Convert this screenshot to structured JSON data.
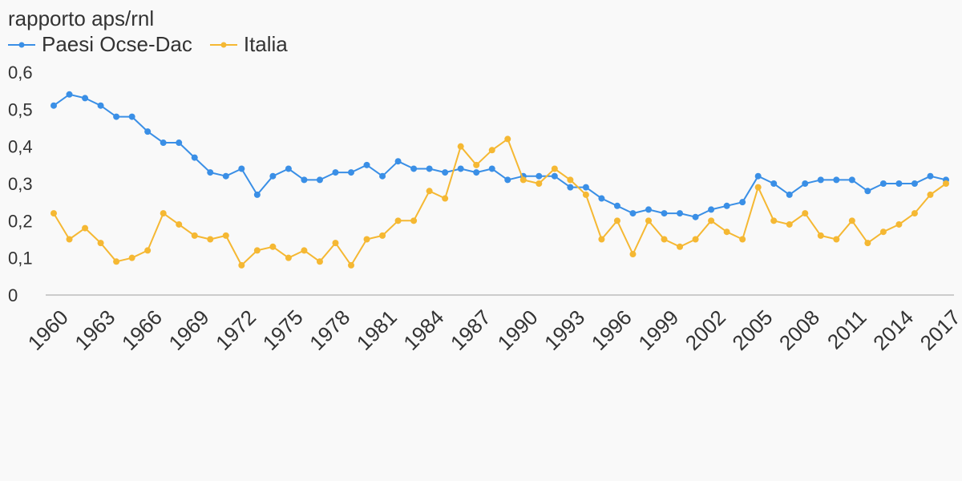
{
  "chart_data": {
    "type": "line",
    "title": "rapporto aps/rnl",
    "xlabel": "",
    "ylabel": "",
    "ylim": [
      0,
      0.6
    ],
    "y_ticks": [
      0,
      0.1,
      0.2,
      0.3,
      0.4,
      0.5,
      0.6
    ],
    "y_tick_labels": [
      "0",
      "0,1",
      "0,2",
      "0,3",
      "0,4",
      "0,5",
      "0,6"
    ],
    "x": [
      1960,
      1961,
      1962,
      1963,
      1964,
      1965,
      1966,
      1967,
      1968,
      1969,
      1970,
      1971,
      1972,
      1973,
      1974,
      1975,
      1976,
      1977,
      1978,
      1979,
      1980,
      1981,
      1982,
      1983,
      1984,
      1985,
      1986,
      1987,
      1988,
      1989,
      1990,
      1991,
      1992,
      1993,
      1994,
      1995,
      1996,
      1997,
      1998,
      1999,
      2000,
      2001,
      2002,
      2003,
      2004,
      2005,
      2006,
      2007,
      2008,
      2009,
      2010,
      2011,
      2012,
      2013,
      2014,
      2015,
      2016,
      2017
    ],
    "x_tick_labels": [
      "1960",
      "1963",
      "1966",
      "1969",
      "1972",
      "1975",
      "1978",
      "1981",
      "1984",
      "1987",
      "1990",
      "1993",
      "1996",
      "1999",
      "2002",
      "2005",
      "2008",
      "2011",
      "2014",
      "2017"
    ],
    "grid": false,
    "legend_position": "top-left",
    "series": [
      {
        "name": "Paesi Ocse-Dac",
        "color": "#3a8fe6",
        "values": [
          0.51,
          0.54,
          0.53,
          0.51,
          0.48,
          0.48,
          0.44,
          0.41,
          0.41,
          0.37,
          0.33,
          0.32,
          0.34,
          0.27,
          0.32,
          0.34,
          0.31,
          0.31,
          0.33,
          0.33,
          0.35,
          0.32,
          0.36,
          0.34,
          0.34,
          0.33,
          0.34,
          0.33,
          0.34,
          0.31,
          0.32,
          0.32,
          0.32,
          0.29,
          0.29,
          0.26,
          0.24,
          0.22,
          0.23,
          0.22,
          0.22,
          0.21,
          0.23,
          0.24,
          0.25,
          0.32,
          0.3,
          0.27,
          0.3,
          0.31,
          0.31,
          0.31,
          0.28,
          0.3,
          0.3,
          0.3,
          0.32,
          0.31
        ]
      },
      {
        "name": "Italia",
        "color": "#f5b833",
        "values": [
          0.22,
          0.15,
          0.18,
          0.14,
          0.09,
          0.1,
          0.12,
          0.22,
          0.19,
          0.16,
          0.15,
          0.16,
          0.08,
          0.12,
          0.13,
          0.1,
          0.12,
          0.09,
          0.14,
          0.08,
          0.15,
          0.16,
          0.2,
          0.2,
          0.28,
          0.26,
          0.4,
          0.35,
          0.39,
          0.42,
          0.31,
          0.3,
          0.34,
          0.31,
          0.27,
          0.15,
          0.2,
          0.11,
          0.2,
          0.15,
          0.13,
          0.15,
          0.2,
          0.17,
          0.15,
          0.29,
          0.2,
          0.19,
          0.22,
          0.16,
          0.15,
          0.2,
          0.14,
          0.17,
          0.19,
          0.22,
          0.27,
          0.3
        ]
      }
    ]
  }
}
